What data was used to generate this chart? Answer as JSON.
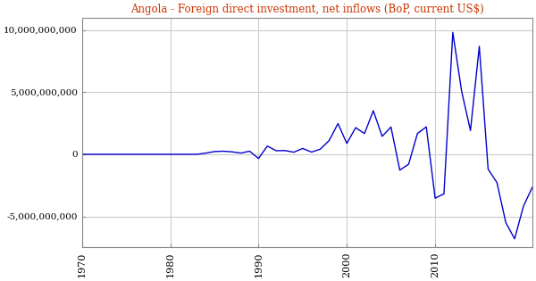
{
  "title": "Angola - Foreign direct investment, net inflows (BoP, current US$)",
  "title_color": "#cc3300",
  "line_color": "#0000cc",
  "bg_color": "#ffffff",
  "grid_color": "#cccccc",
  "years": [
    1970,
    1971,
    1972,
    1973,
    1974,
    1975,
    1976,
    1977,
    1978,
    1979,
    1980,
    1981,
    1982,
    1983,
    1984,
    1985,
    1986,
    1987,
    1988,
    1989,
    1990,
    1991,
    1992,
    1993,
    1994,
    1995,
    1996,
    1997,
    1998,
    1999,
    2000,
    2001,
    2002,
    2003,
    2004,
    2005,
    2006,
    2007,
    2008,
    2009,
    2010,
    2011,
    2012,
    2013,
    2014,
    2015,
    2016,
    2017,
    2018,
    2019,
    2020,
    2021
  ],
  "values": [
    0,
    0,
    0,
    0,
    0,
    0,
    0,
    0,
    0,
    0,
    0,
    0,
    0,
    0,
    90000000,
    220000000,
    250000000,
    200000000,
    100000000,
    250000000,
    -335000000,
    665000000,
    288000000,
    302000000,
    170000000,
    472000000,
    181000000,
    412000000,
    1114000000,
    2471000000,
    878000000,
    2145000000,
    1672000000,
    3505000000,
    1449000000,
    2196000000,
    -1275000000,
    -795000000,
    1680000000,
    2205000000,
    -3526000000,
    -3180000000,
    9812000000,
    5074000000,
    1909000000,
    8689000000,
    -1200000000,
    -2273000000,
    -5490000000,
    -6802000000,
    -4175000000,
    -2660000000
  ],
  "xlim": [
    1970,
    2021
  ],
  "ylim": [
    -7500000000,
    11000000000
  ],
  "xticks": [
    1970,
    1980,
    1990,
    2000,
    2010
  ],
  "yticks": [
    -5000000000,
    0,
    5000000000,
    10000000000
  ]
}
